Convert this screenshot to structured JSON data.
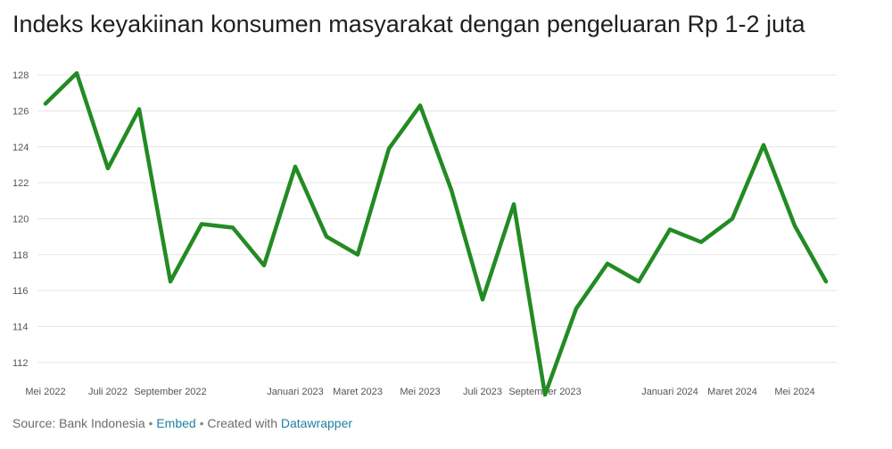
{
  "colors": {
    "line": "#238b23",
    "grid": "#e5e5e5",
    "tick_text": "#555555",
    "link": "#1d81a2"
  },
  "chart_data": {
    "type": "line",
    "title": "Indeks keyakiinan konsumen masyarakat dengan pengeluaran Rp 1-2 juta",
    "xlabel": "",
    "ylabel": "",
    "ylim": [
      110.5,
      129
    ],
    "yticks": [
      112,
      114,
      116,
      118,
      120,
      122,
      124,
      126,
      128
    ],
    "grid": true,
    "x": [
      "Mei 2022",
      "Jun 2022",
      "Juli 2022",
      "Agu 2022",
      "September 2022",
      "Okt 2022",
      "Nov 2022",
      "Des 2022",
      "Januari 2023",
      "Februari 2023",
      "Maret 2023",
      "April 2023",
      "Mei 2023",
      "Jun 2023",
      "Juli 2023",
      "Agu 2023",
      "September 2023",
      "Okt 2023",
      "Nov 2023",
      "Des 2023",
      "Januari 2024",
      "Februari 2024",
      "Maret 2024",
      "April 2024",
      "Mei 2024",
      "Jun 2024"
    ],
    "xtick_labels": [
      {
        "index": 0,
        "label": "Mei 2022"
      },
      {
        "index": 2,
        "label": "Juli 2022"
      },
      {
        "index": 4,
        "label": "September 2022"
      },
      {
        "index": 8,
        "label": "Januari 2023"
      },
      {
        "index": 10,
        "label": "Maret 2023"
      },
      {
        "index": 12,
        "label": "Mei 2023"
      },
      {
        "index": 14,
        "label": "Juli 2023"
      },
      {
        "index": 16,
        "label": "September 2023"
      },
      {
        "index": 20,
        "label": "Januari 2024"
      },
      {
        "index": 22,
        "label": "Maret 2024"
      },
      {
        "index": 24,
        "label": "Mei 2024"
      }
    ],
    "series": [
      {
        "values": [
          126.4,
          128.1,
          122.8,
          126.1,
          116.5,
          119.7,
          119.5,
          117.4,
          122.9,
          119.0,
          118.0,
          123.9,
          126.3,
          121.6,
          115.5,
          120.8,
          110.2,
          115.0,
          117.5,
          116.5,
          119.4,
          118.7,
          120.0,
          124.1,
          119.6,
          116.5
        ]
      }
    ]
  },
  "footer": {
    "source": "Source: Bank Indonesia",
    "sep": " • ",
    "embed": "Embed",
    "sep2": "  • ",
    "created": "Created with ",
    "tool": "Datawrapper"
  }
}
